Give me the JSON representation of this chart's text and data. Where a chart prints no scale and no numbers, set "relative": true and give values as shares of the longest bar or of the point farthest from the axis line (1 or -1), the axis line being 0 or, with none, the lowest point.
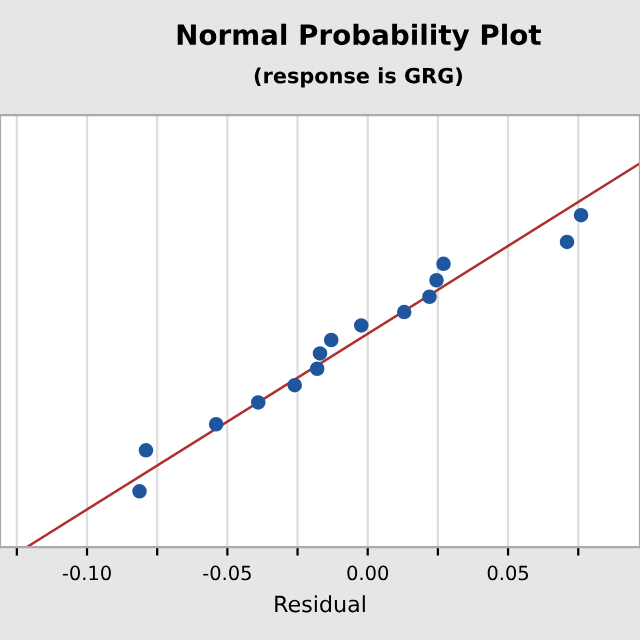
{
  "chart_data": {
    "type": "scatter",
    "title": "Normal Probability Plot",
    "subtitle": "(response is GRG)",
    "xlabel": "Residual",
    "relative": true,
    "xlim": [
      -0.131,
      0.097
    ],
    "xticks": [
      {
        "value": -0.125,
        "label": null
      },
      {
        "value": -0.1,
        "label": "-0.10"
      },
      {
        "value": -0.075,
        "label": null
      },
      -0.05,
      {
        "value": -0.025,
        "label": null
      },
      {
        "value": 0,
        "label": "0.00"
      },
      {
        "value": 0.025,
        "label": null
      },
      0.05,
      {
        "value": 0.075,
        "label": null
      }
    ],
    "grid": "x",
    "tick_labels": "x",
    "series": [
      {
        "marker": "circle",
        "color": "#1f569e",
        "x": [
          -0.0813,
          -0.079,
          -0.054,
          -0.039,
          -0.026,
          -0.018,
          -0.017,
          -0.013,
          -0.0023,
          0.013,
          0.022,
          0.0245,
          0.027,
          0.071,
          0.076
        ],
        "values": [
          0.146,
          0.253,
          0.321,
          0.378,
          0.423,
          0.466,
          0.506,
          0.541,
          0.579,
          0.614,
          0.654,
          0.697,
          0.74,
          0.797,
          0.867
        ]
      },
      {
        "type": "line",
        "color": "#b03030",
        "x": [
          -0.1215,
          0.0965
        ],
        "values": [
          0,
          1
        ]
      }
    ]
  }
}
